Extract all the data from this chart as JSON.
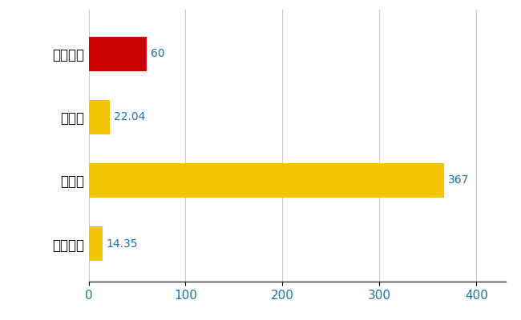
{
  "categories": [
    "東大阪市",
    "県平均",
    "県最大",
    "全国平均"
  ],
  "values": [
    60,
    22.04,
    367,
    14.35
  ],
  "bar_colors": [
    "#cc0000",
    "#f5c400",
    "#f5c400",
    "#f5c400"
  ],
  "value_labels": [
    "60",
    "22.04",
    "367",
    "14.35"
  ],
  "value_label_color": "#1a6fad",
  "xlim": [
    0,
    430
  ],
  "xticks": [
    0,
    100,
    200,
    300,
    400
  ],
  "grid_color": "#cccccc",
  "background_color": "#ffffff",
  "bar_height": 0.55,
  "label_fontsize": 12,
  "tick_fontsize": 11,
  "value_label_fontsize": 10
}
